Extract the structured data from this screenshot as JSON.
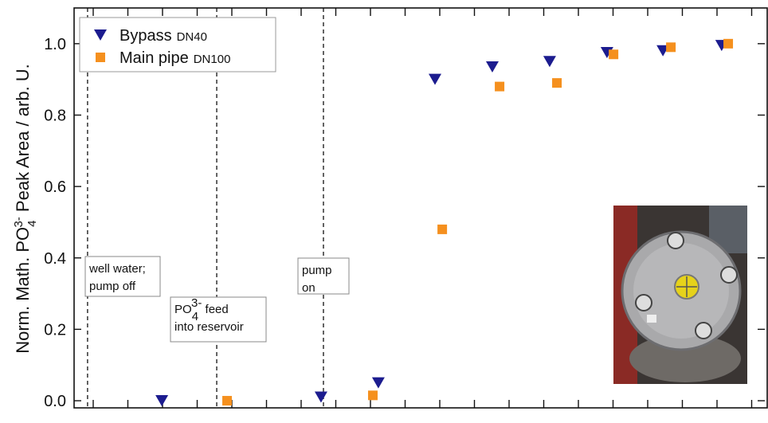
{
  "chart_data": {
    "type": "scatter",
    "ylabel": {
      "parts": [
        "Norm. Math. PO",
        "4",
        "3-",
        " Peak Area / arb. U."
      ]
    },
    "xlim": [
      0,
      20
    ],
    "ylim": [
      -0.02,
      1.1
    ],
    "yticks": [
      {
        "value": 0,
        "label": "0.0"
      },
      0.2,
      0.4,
      0.6,
      0.8,
      {
        "value": 1,
        "label": "1.0"
      }
    ],
    "series": [
      {
        "name": "Bypass",
        "name_note": "DN40",
        "marker": "triangle-down",
        "color": "#1c1c8f",
        "x": [
          2.54,
          7.15,
          8.81,
          10.45,
          12.11,
          13.77,
          15.43,
          17.05,
          18.75
        ],
        "values": [
          0.0,
          0.01,
          0.05,
          0.9,
          0.935,
          0.95,
          0.975,
          0.98,
          0.995
        ]
      },
      {
        "name": "Main pipe",
        "name_note": "DN100",
        "marker": "square",
        "color": "#f5901e",
        "x": [
          4.43,
          8.65,
          10.66,
          12.32,
          13.98,
          15.62,
          17.28,
          18.94
        ],
        "values": [
          0.0,
          0.015,
          0.48,
          0.88,
          0.89,
          0.97,
          0.99,
          1.0
        ]
      }
    ],
    "events": [
      {
        "x": 0.39,
        "lines": [
          [
            "well water;"
          ],
          [
            "pump off"
          ]
        ]
      },
      {
        "x": 4.13,
        "lines": [
          [
            "PO",
            "4",
            "3-",
            " feed"
          ],
          [
            "into reservoir"
          ]
        ]
      },
      {
        "x": 7.22,
        "lines": [
          [
            "pump"
          ],
          [
            "on"
          ]
        ]
      }
    ]
  }
}
